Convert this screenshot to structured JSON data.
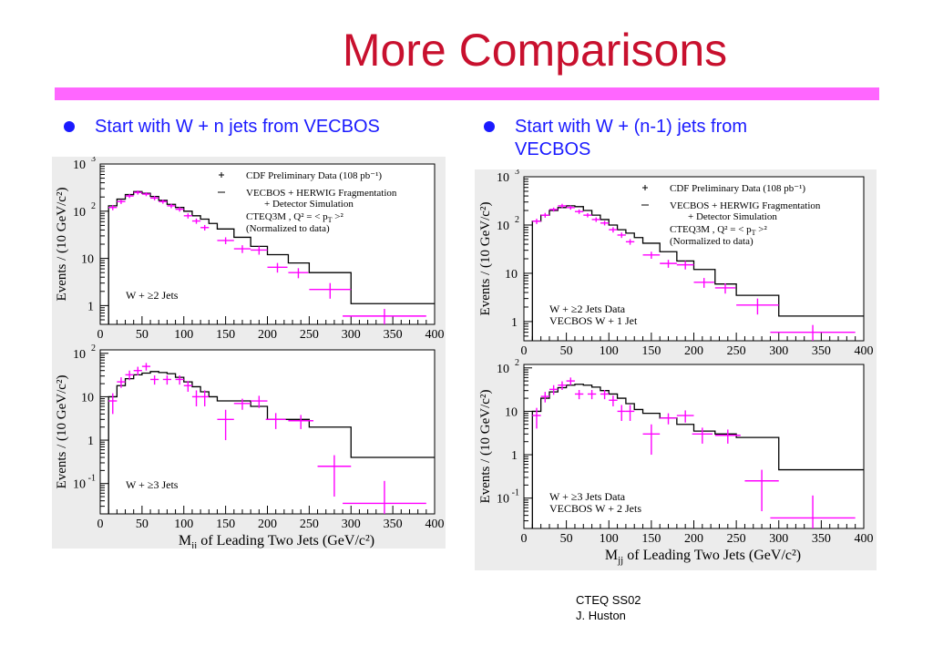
{
  "slide": {
    "title": "More Comparisons",
    "bullets": [
      {
        "text": "Start with W + n jets from VECBOS"
      },
      {
        "text": "Start with W + (n-1) jets from VECBOS"
      }
    ],
    "footer": {
      "line1": "CTEQ SS02",
      "line2": "J. Huston"
    }
  },
  "colors": {
    "title": "#c8102e",
    "rule": "#ff66ff",
    "bullet": "#1a1aff",
    "data": "#ff00ff",
    "mc": "#000000",
    "panel": "#ececec"
  },
  "legend": {
    "data": "CDF Preliminary Data (108 pb⁻¹)",
    "mc1": "VECBOS + HERWIG Fragmentation",
    "mc2": "+ Detector Simulation",
    "mc3": "CTEQ3M , Q² = < p",
    "mc3_sub": "T",
    "mc3_end": " >²",
    "mc4": "(Normalized to data)"
  },
  "axis_labels": {
    "ylabel": "Events / (10 GeV/c²)",
    "xlabel_pre": "M",
    "xlabel_sub": "jj",
    "xlabel_post": " of Leading Two Jets (GeV/c²)"
  },
  "chart_data": [
    {
      "type": "histogram-with-error-bars",
      "figure": "left",
      "panel": "top",
      "label": [
        "W + ≥2 Jets"
      ],
      "xlim": [
        0,
        400
      ],
      "ylim": [
        0.4,
        1000
      ],
      "yscale": "log",
      "xticks": [
        0,
        50,
        100,
        150,
        200,
        250,
        300,
        350,
        400
      ],
      "ytick_labels": [
        {
          "v": 1,
          "t": "1"
        },
        {
          "v": 10,
          "t": "10"
        },
        {
          "v": 100,
          "t": "10",
          "sup": "2"
        },
        {
          "v": 1000,
          "t": "10",
          "sup": "3"
        }
      ],
      "histogram": {
        "name": "VECBOS + HERWIG Fragmentation + Detector Simulation",
        "edges": [
          10,
          20,
          30,
          40,
          50,
          60,
          70,
          80,
          90,
          100,
          110,
          120,
          130,
          140,
          160,
          180,
          200,
          225,
          250,
          300,
          400
        ],
        "values": [
          130,
          180,
          225,
          260,
          240,
          205,
          170,
          140,
          120,
          100,
          80,
          68,
          55,
          42,
          28,
          18,
          12,
          8,
          5,
          1.1
        ]
      },
      "data_points": {
        "name": "CDF Preliminary Data (108 pb⁻¹)",
        "points": [
          [
            15,
            120,
            5,
            15
          ],
          [
            25,
            160,
            5,
            18
          ],
          [
            35,
            210,
            5,
            20
          ],
          [
            45,
            250,
            5,
            25
          ],
          [
            55,
            230,
            5,
            22
          ],
          [
            65,
            190,
            5,
            20
          ],
          [
            75,
            160,
            5,
            16
          ],
          [
            85,
            130,
            5,
            14
          ],
          [
            95,
            110,
            5,
            12
          ],
          [
            105,
            80,
            5,
            10
          ],
          [
            115,
            62,
            5,
            8
          ],
          [
            125,
            45,
            5,
            6
          ],
          [
            150,
            24,
            10,
            4
          ],
          [
            170,
            16,
            10,
            3
          ],
          [
            190,
            15,
            10,
            3
          ],
          [
            212,
            6.5,
            12,
            1.5
          ],
          [
            237,
            5,
            12,
            1.2
          ],
          [
            275,
            2.2,
            25,
            0.8
          ],
          [
            340,
            0.6,
            50,
            0.25
          ]
        ]
      }
    },
    {
      "type": "histogram-with-error-bars",
      "figure": "left",
      "panel": "bottom",
      "label": [
        "W + ≥3 Jets"
      ],
      "xlim": [
        0,
        400
      ],
      "ylim": [
        0.02,
        120
      ],
      "yscale": "log",
      "xticks": [
        0,
        50,
        100,
        150,
        200,
        250,
        300,
        350,
        400
      ],
      "ytick_labels": [
        {
          "v": 0.1,
          "t": "10",
          "sup": "-1"
        },
        {
          "v": 1,
          "t": "1"
        },
        {
          "v": 10,
          "t": "10"
        },
        {
          "v": 100,
          "t": "10",
          "sup": "2"
        }
      ],
      "histogram": {
        "name": "VECBOS + HERWIG Fragmentation + Detector Simulation",
        "edges": [
          10,
          20,
          30,
          40,
          50,
          60,
          70,
          80,
          90,
          100,
          110,
          120,
          130,
          140,
          160,
          180,
          200,
          225,
          250,
          300,
          400
        ],
        "values": [
          10,
          18,
          26,
          32,
          35,
          38,
          36,
          34,
          28,
          22,
          17,
          13,
          10,
          8,
          8,
          6,
          3,
          3,
          2,
          0.4
        ]
      },
      "data_points": {
        "name": "CDF Preliminary Data (108 pb⁻¹)",
        "points": [
          [
            15,
            8,
            5,
            4
          ],
          [
            25,
            22,
            5,
            6
          ],
          [
            35,
            32,
            5,
            8
          ],
          [
            45,
            40,
            5,
            9
          ],
          [
            55,
            50,
            5,
            10
          ],
          [
            65,
            25,
            5,
            6
          ],
          [
            80,
            25,
            5,
            6
          ],
          [
            95,
            25,
            5,
            6
          ],
          [
            105,
            18,
            5,
            5
          ],
          [
            115,
            10,
            5,
            4
          ],
          [
            125,
            10,
            5,
            4
          ],
          [
            150,
            3,
            10,
            2
          ],
          [
            170,
            7,
            10,
            2
          ],
          [
            190,
            8,
            10,
            2.5
          ],
          [
            210,
            3,
            12,
            1.2
          ],
          [
            240,
            2.8,
            15,
            1
          ],
          [
            280,
            0.25,
            20,
            0.2
          ],
          [
            340,
            0.035,
            50,
            0.08
          ]
        ]
      }
    },
    {
      "type": "histogram-with-error-bars",
      "figure": "right",
      "panel": "top",
      "label": [
        "W + ≥2 Jets Data",
        "VECBOS W + 1 Jet"
      ],
      "xlim": [
        0,
        400
      ],
      "ylim": [
        0.4,
        1000
      ],
      "yscale": "log",
      "xticks": [
        0,
        50,
        100,
        150,
        200,
        250,
        300,
        350,
        400
      ],
      "ytick_labels": [
        {
          "v": 1,
          "t": "1"
        },
        {
          "v": 10,
          "t": "10"
        },
        {
          "v": 100,
          "t": "10",
          "sup": "2"
        },
        {
          "v": 1000,
          "t": "10",
          "sup": "3"
        }
      ],
      "histogram": {
        "name": "VECBOS + HERWIG Fragmentation + Detector Simulation",
        "edges": [
          10,
          20,
          30,
          40,
          50,
          60,
          70,
          80,
          90,
          100,
          110,
          120,
          130,
          140,
          160,
          180,
          200,
          225,
          250,
          300,
          400
        ],
        "values": [
          120,
          160,
          200,
          230,
          250,
          240,
          200,
          160,
          130,
          100,
          80,
          68,
          55,
          42,
          28,
          18,
          12,
          6,
          3.5,
          1.3
        ]
      },
      "data_points": {
        "name": "CDF Preliminary Data (108 pb⁻¹)",
        "points": [
          [
            15,
            120,
            5,
            15
          ],
          [
            25,
            160,
            5,
            18
          ],
          [
            35,
            210,
            5,
            20
          ],
          [
            45,
            250,
            5,
            25
          ],
          [
            55,
            230,
            5,
            22
          ],
          [
            65,
            190,
            5,
            20
          ],
          [
            75,
            160,
            5,
            16
          ],
          [
            85,
            130,
            5,
            14
          ],
          [
            95,
            110,
            5,
            12
          ],
          [
            105,
            80,
            5,
            10
          ],
          [
            115,
            62,
            5,
            8
          ],
          [
            125,
            45,
            5,
            6
          ],
          [
            150,
            24,
            10,
            4
          ],
          [
            170,
            16,
            10,
            3
          ],
          [
            190,
            15,
            10,
            3
          ],
          [
            212,
            6.5,
            12,
            1.5
          ],
          [
            237,
            5,
            12,
            1.2
          ],
          [
            275,
            2.2,
            25,
            0.8
          ],
          [
            340,
            0.6,
            50,
            0.25
          ]
        ]
      }
    },
    {
      "type": "histogram-with-error-bars",
      "figure": "right",
      "panel": "bottom",
      "label": [
        "W + ≥3 Jets Data",
        "VECBOS W + 2 Jets"
      ],
      "xlim": [
        0,
        400
      ],
      "ylim": [
        0.02,
        120
      ],
      "yscale": "log",
      "xticks": [
        0,
        50,
        100,
        150,
        200,
        250,
        300,
        350,
        400
      ],
      "ytick_labels": [
        {
          "v": 0.1,
          "t": "10",
          "sup": "-1"
        },
        {
          "v": 1,
          "t": "1"
        },
        {
          "v": 10,
          "t": "10"
        },
        {
          "v": 100,
          "t": "10",
          "sup": "2"
        }
      ],
      "histogram": {
        "name": "VECBOS + HERWIG Fragmentation + Detector Simulation",
        "edges": [
          10,
          20,
          30,
          40,
          50,
          60,
          70,
          80,
          90,
          100,
          110,
          120,
          130,
          140,
          160,
          180,
          200,
          225,
          250,
          300,
          400
        ],
        "values": [
          10,
          20,
          28,
          35,
          40,
          42,
          40,
          36,
          30,
          25,
          20,
          15,
          11,
          9,
          7,
          5,
          3.5,
          3,
          2.5,
          0.45
        ]
      },
      "data_points": {
        "name": "CDF Preliminary Data (108 pb⁻¹)",
        "points": [
          [
            15,
            8,
            5,
            4
          ],
          [
            25,
            22,
            5,
            6
          ],
          [
            35,
            32,
            5,
            8
          ],
          [
            45,
            40,
            5,
            9
          ],
          [
            55,
            50,
            5,
            10
          ],
          [
            65,
            25,
            5,
            6
          ],
          [
            80,
            25,
            5,
            6
          ],
          [
            95,
            25,
            5,
            6
          ],
          [
            105,
            18,
            5,
            5
          ],
          [
            115,
            10,
            5,
            4
          ],
          [
            125,
            10,
            5,
            4
          ],
          [
            150,
            3,
            10,
            2
          ],
          [
            170,
            7,
            10,
            2
          ],
          [
            190,
            8,
            10,
            2.5
          ],
          [
            210,
            3,
            12,
            1.2
          ],
          [
            240,
            2.8,
            15,
            1
          ],
          [
            280,
            0.25,
            20,
            0.2
          ],
          [
            340,
            0.035,
            50,
            0.08
          ]
        ]
      }
    }
  ]
}
